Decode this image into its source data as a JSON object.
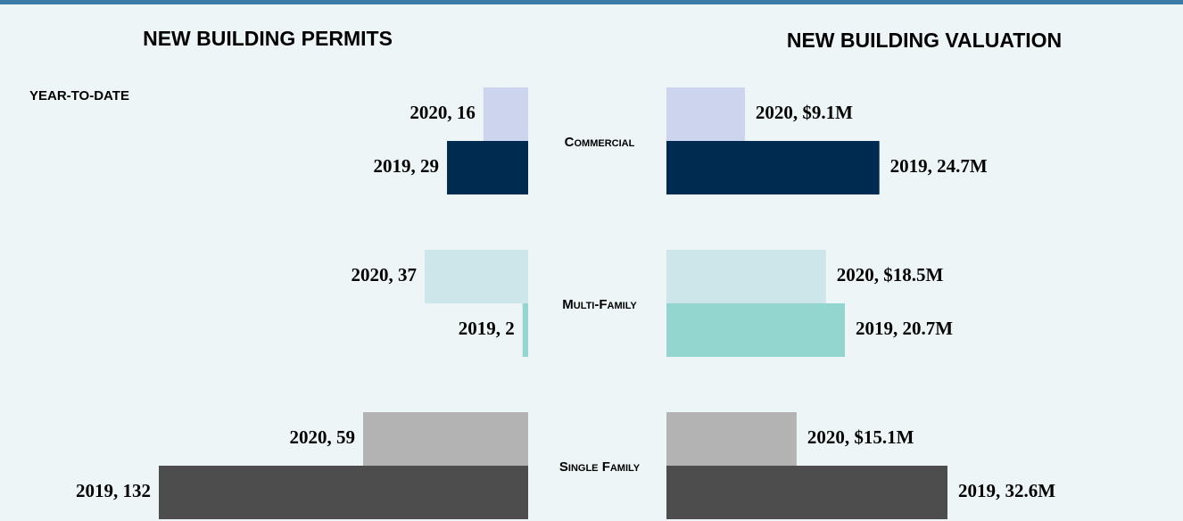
{
  "chart_data": [
    {
      "type": "bar",
      "title": "NEW BUILDING PERMITS",
      "subtitle": "YEAR-TO-DATE",
      "direction": "left",
      "categories": [
        "Commercial",
        "Multi-Family",
        "Single Family"
      ],
      "xlim": [
        0,
        132
      ],
      "series": [
        {
          "name": "2020",
          "colors": [
            "#cdd5ee",
            "#cde6ea",
            "#b3b3b3"
          ],
          "values": [
            16,
            37,
            59
          ],
          "value_labels": [
            "2020, 16",
            "2020, 37",
            "2020, 59"
          ]
        },
        {
          "name": "2019",
          "colors": [
            "#002b50",
            "#93d6cf",
            "#4d4d4d"
          ],
          "values": [
            29,
            2,
            132
          ],
          "value_labels": [
            "2019, 29",
            "2019, 2",
            "2019, 132"
          ]
        }
      ]
    },
    {
      "type": "bar",
      "title": "NEW BUILDING VALUATION",
      "direction": "right",
      "categories": [
        "Commercial",
        "Multi-Family",
        "Single Family"
      ],
      "xlim": [
        0,
        32.6
      ],
      "series": [
        {
          "name": "2020",
          "colors": [
            "#cdd5ee",
            "#cde6ea",
            "#b3b3b3"
          ],
          "values": [
            9.1,
            18.5,
            15.1
          ],
          "value_labels": [
            "2020, $9.1M",
            "2020, $18.5M",
            "2020, $15.1M"
          ]
        },
        {
          "name": "2019",
          "colors": [
            "#002b50",
            "#93d6cf",
            "#4d4d4d"
          ],
          "values": [
            24.7,
            20.7,
            32.6
          ],
          "value_labels": [
            "2019, 24.7M",
            "2019, 20.7M",
            "2019, 32.6M"
          ]
        }
      ]
    }
  ]
}
